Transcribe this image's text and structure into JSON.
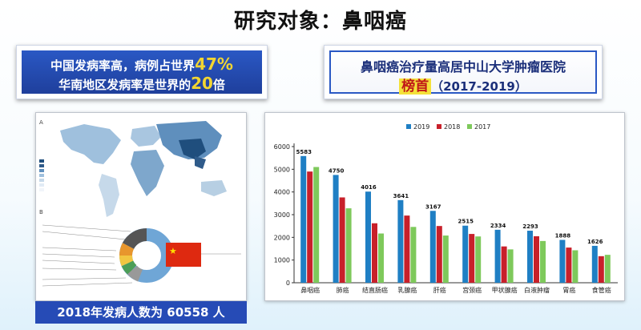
{
  "page": {
    "title": "研究对象：鼻咽癌"
  },
  "banner_left": {
    "line1_text": "中国发病率高，病例占世界",
    "line1_value": "47%",
    "line2_text": "华南地区发病率是世界的",
    "line2_value": "20",
    "line2_suffix": "倍"
  },
  "banner_right": {
    "line1": "鼻咽癌治疗量高居中山大学肿瘤医院",
    "line2_highlight": "榜首",
    "line2_years": "（2017-2019）"
  },
  "left_figure": {
    "panel_a_label": "A",
    "panel_b_label": "B",
    "caption": "2018年发病人数为 60558 人",
    "colors": {
      "map_dark": "#2f5b8a",
      "map_light": "#b7cfe3",
      "flag": "#de2910"
    }
  },
  "chart_data": {
    "type": "bar",
    "categories": [
      "鼻咽癌",
      "肺癌",
      "结直肠癌",
      "乳腺癌",
      "肝癌",
      "宫颈癌",
      "甲状腺癌",
      "白液肿瘤",
      "胃癌",
      "食管癌"
    ],
    "series": [
      {
        "name": "2019",
        "color": "#1f7fc4",
        "values": [
          5583,
          4750,
          4016,
          3641,
          3167,
          2515,
          2334,
          2293,
          1888,
          1626
        ]
      },
      {
        "name": "2018",
        "color": "#c8202a",
        "values": [
          4900,
          3760,
          2620,
          2960,
          2500,
          2150,
          1600,
          2050,
          1550,
          1170
        ]
      },
      {
        "name": "2017",
        "color": "#7ec95b",
        "values": [
          5100,
          3280,
          2170,
          2460,
          2080,
          2040,
          1470,
          1840,
          1430,
          1230
        ]
      }
    ],
    "data_labels": [
      "5583",
      "4750",
      "4016",
      "3641",
      "3167",
      "2515",
      "2334",
      "2293",
      "1888",
      "1626"
    ],
    "ylim": [
      0,
      6000
    ],
    "yticks": [
      "0",
      "1000",
      "2000",
      "3000",
      "4000",
      "5000",
      "6000"
    ],
    "legend_position": "top-center",
    "grid": false
  }
}
